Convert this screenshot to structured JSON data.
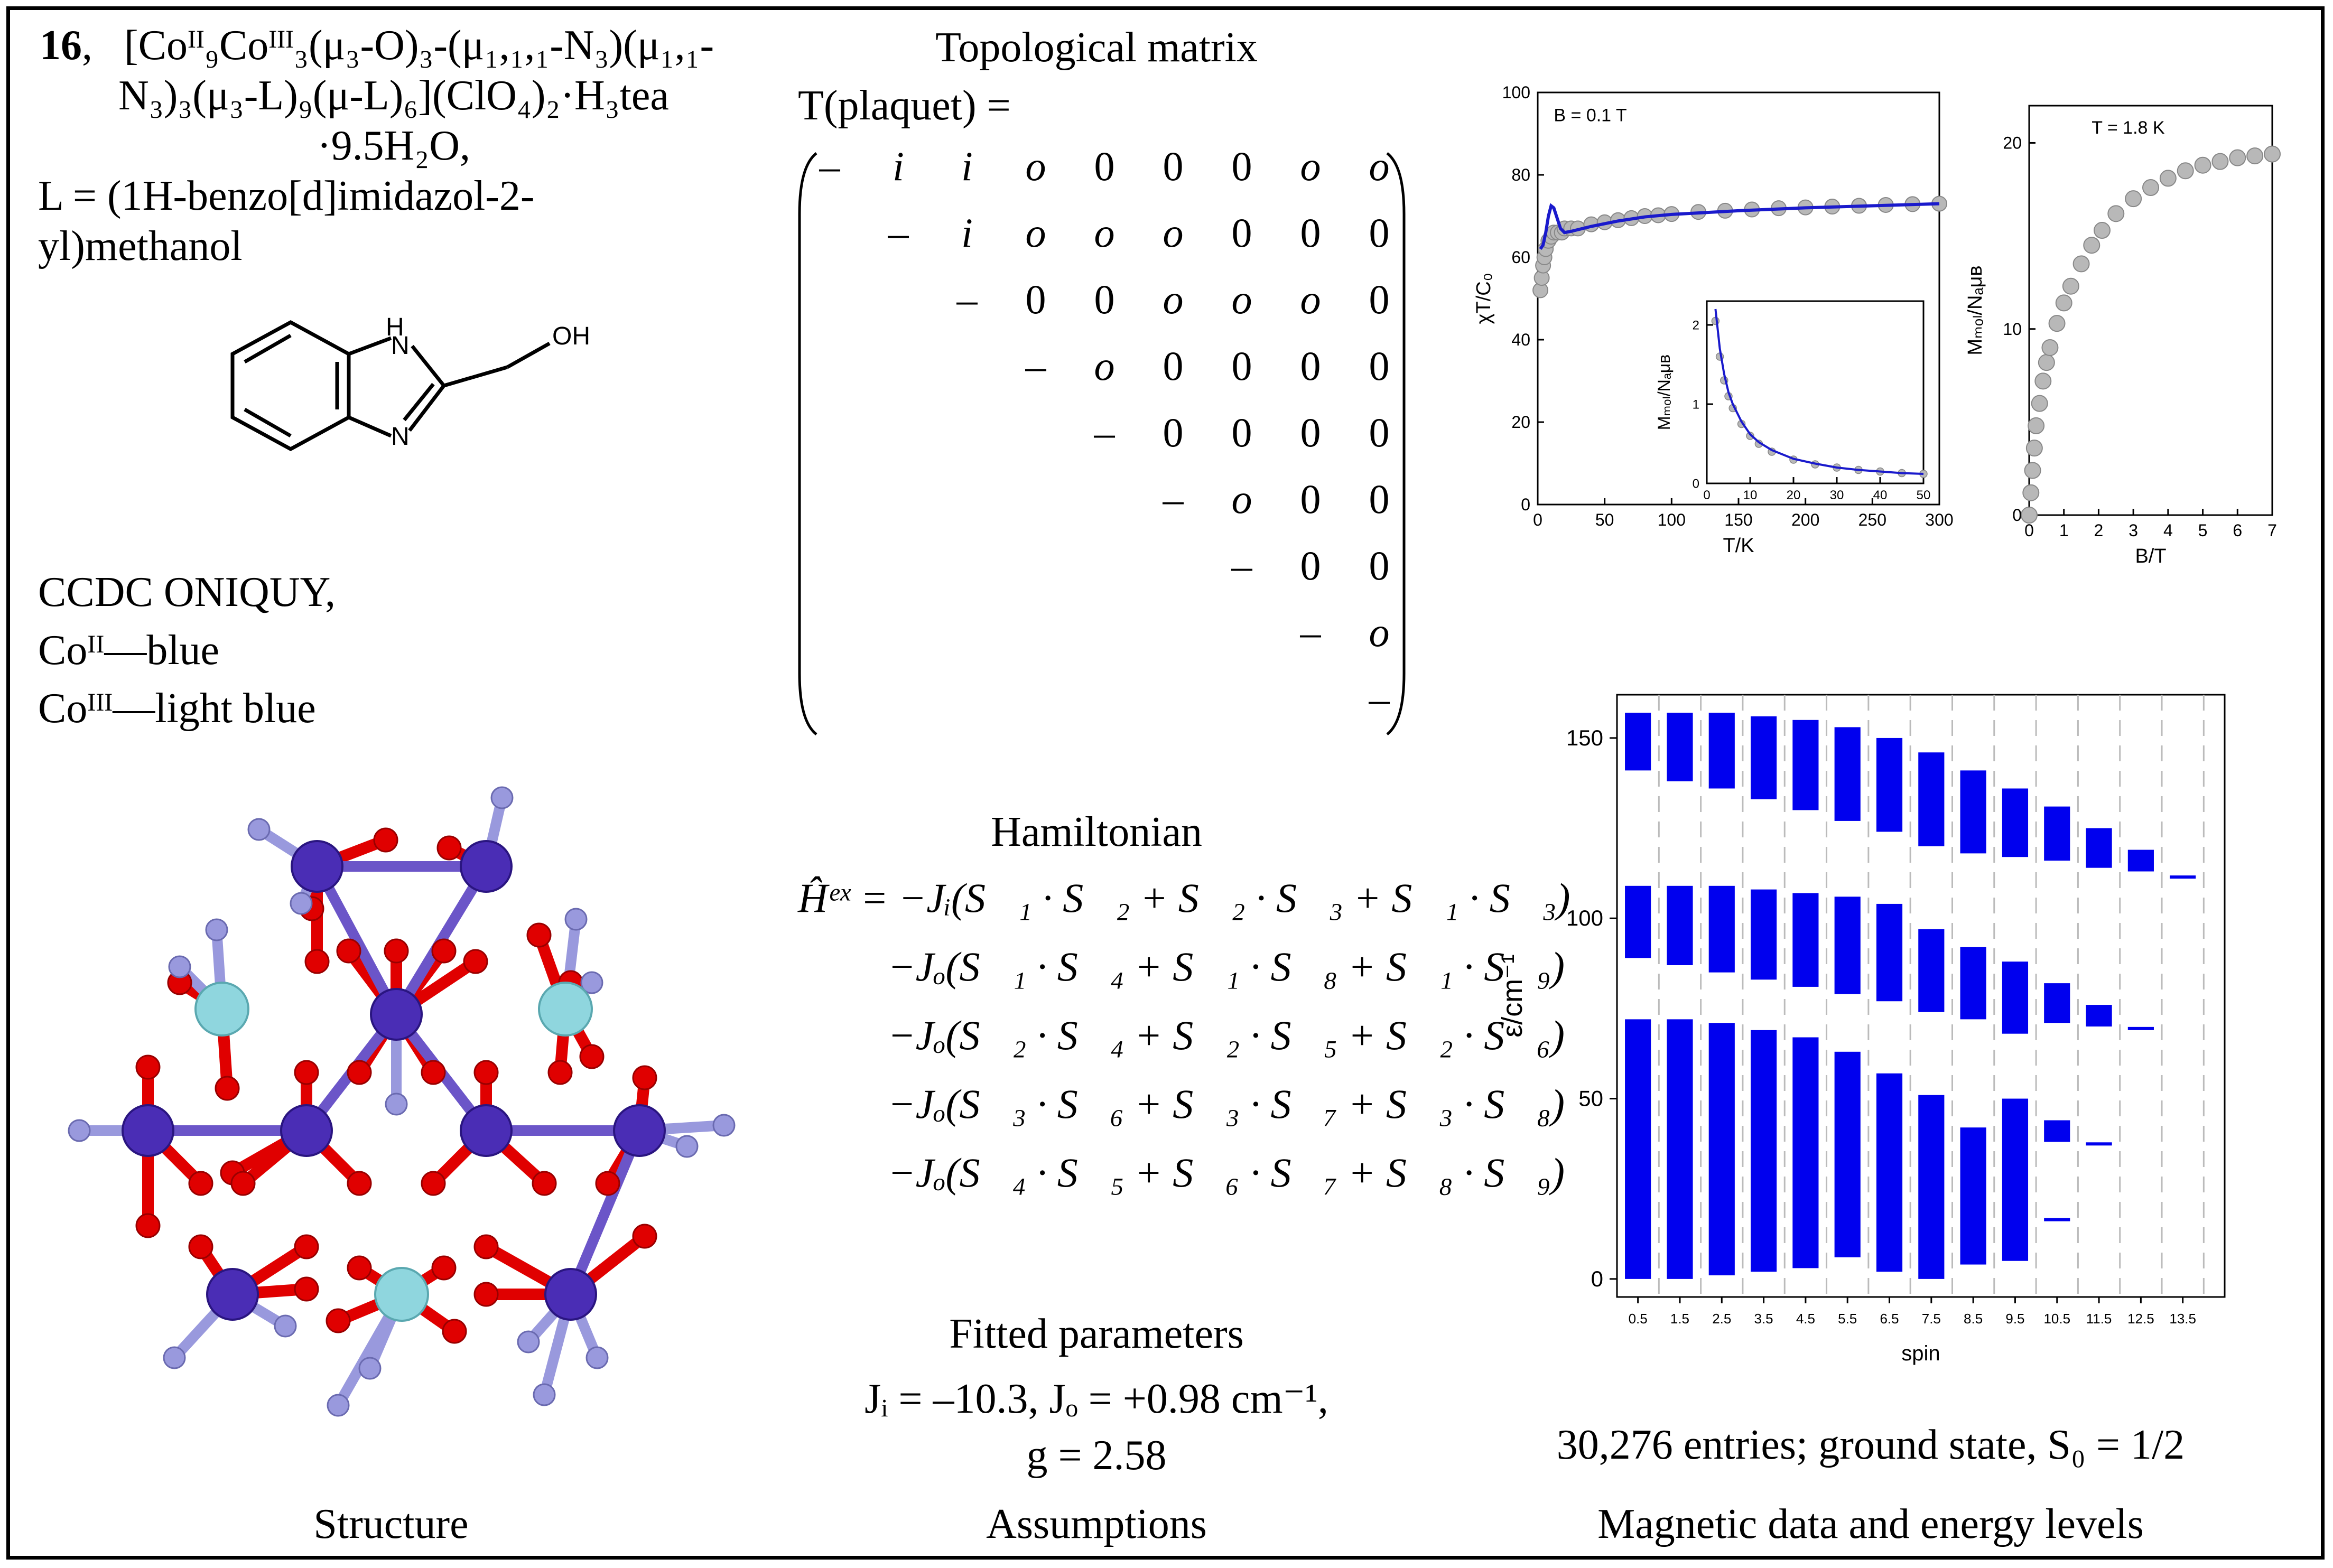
{
  "compound": {
    "number": "16",
    "formula_lines": [
      "[Coᴵᴵ₉Coᴵᴵᴵ₃(μ₃-O)₃-(μ₁,₁,₁-N₃)(μ₁,₁-",
      "N₃)₃(μ₃-L)₉(μ-L)₆](ClO₄)₂·H₃tea",
      "·9.5H₂O,"
    ],
    "ligand_line1": "L = (1H-benzo[d]imidazol-2-",
    "ligand_line2": "yl)methanol",
    "ccdc": "CCDC ONIQUY,",
    "co2": "Coᴵᴵ—blue",
    "co3": "Coᴵᴵᴵ—light blue",
    "mol_labels": {
      "nh": "H",
      "n1": "N",
      "n2": "N",
      "oh": "OH"
    }
  },
  "matrix": {
    "title": "Topological matrix",
    "label": "T(plaquet) =",
    "rows": [
      [
        "–",
        "i",
        "i",
        "o",
        "0",
        "0",
        "0",
        "o",
        "o"
      ],
      [
        "",
        "–",
        "i",
        "o",
        "o",
        "o",
        "0",
        "0",
        "0"
      ],
      [
        "",
        "",
        "–",
        "0",
        "0",
        "o",
        "o",
        "o",
        "0"
      ],
      [
        "",
        "",
        "",
        "–",
        "o",
        "0",
        "0",
        "0",
        "0"
      ],
      [
        "",
        "",
        "",
        "",
        "–",
        "0",
        "0",
        "0",
        "0"
      ],
      [
        "",
        "",
        "",
        "",
        "",
        "–",
        "o",
        "0",
        "0"
      ],
      [
        "",
        "",
        "",
        "",
        "",
        "",
        "–",
        "0",
        "0"
      ],
      [
        "",
        "",
        "",
        "",
        "",
        "",
        "",
        "–",
        "o"
      ],
      [
        "",
        "",
        "",
        "",
        "",
        "",
        "",
        "",
        "–"
      ]
    ]
  },
  "hamiltonian": {
    "title": "Hamiltonian",
    "lines": [
      "Ĥᵉˣ = −Jᵢ(S⃗₁ · S⃗₂ + S⃗₂ · S⃗₃ + S⃗₁ · S⃗₃)",
      "−Jₒ(S⃗₁ · S⃗₄ + S⃗₁ · S⃗₈ + S⃗₁ · S⃗₉)",
      "−Jₒ(S⃗₂ · S⃗₄ + S⃗₂ · S⃗₅ + S⃗₂ · S⃗₆)",
      "−Jₒ(S⃗₃ · S⃗₆ + S⃗₃ · S⃗₇ + S⃗₃ · S⃗₈)",
      "−Jₒ(S⃗₄ · S⃗₅ + S⃗₆ · S⃗₇ + S⃗₈ · S⃗₉)"
    ]
  },
  "fitted": {
    "title": "Fitted parameters",
    "line1": "Jᵢ = –10.3, Jₒ = +0.98 cm⁻¹,",
    "line2": "g = 2.58"
  },
  "summary": "30,276 entries; ground state, S₀ = 1/2",
  "captions": {
    "structure": "Structure",
    "assumptions": "Assumptions",
    "magnetic": "Magnetic data and energy levels"
  },
  "colors": {
    "co2": "#4a2db5",
    "co3": "#8fd6de",
    "oxygen": "#e00000",
    "nitrogen": "#9999dd",
    "fit": "#1a1acc",
    "exp": "#b8b8b8",
    "levels": "#0000ee"
  },
  "chart_data": [
    {
      "type": "scatter",
      "annotation": "B = 0.1 T",
      "xlabel": "T/K",
      "ylabel": "χT/C₀",
      "xlim": [
        0,
        300
      ],
      "ylim": [
        0,
        100
      ],
      "xticks": [
        "0",
        "50",
        "100",
        "150",
        "200",
        "250",
        "300"
      ],
      "yticks": [
        "0",
        "20",
        "40",
        "60",
        "80",
        "100"
      ],
      "series": [
        {
          "x": [
            2,
            3,
            4,
            5,
            6,
            8,
            10,
            12,
            15,
            18,
            20,
            25,
            30,
            40,
            50,
            60,
            70,
            80,
            90,
            100,
            120,
            140,
            160,
            180,
            200,
            220,
            240,
            260,
            280,
            300
          ],
          "y": [
            52,
            55,
            58,
            60,
            62,
            64,
            65,
            66,
            66,
            66,
            67,
            67,
            67,
            68,
            68.5,
            69,
            69.5,
            70,
            70.2,
            70.5,
            71,
            71.3,
            71.6,
            71.9,
            72.1,
            72.3,
            72.5,
            72.7,
            72.9,
            73
          ]
        },
        {
          "x": [
            2,
            4,
            6,
            8,
            10,
            12,
            14,
            17,
            20,
            25,
            30,
            40,
            60,
            80,
            100,
            150,
            200,
            250,
            300
          ],
          "y": [
            62,
            63,
            66,
            70,
            72.5,
            72,
            70,
            67,
            66,
            66.3,
            66.7,
            67.5,
            68.8,
            69.8,
            70.4,
            71.3,
            72,
            72.5,
            73
          ]
        }
      ]
    },
    {
      "type": "scatter",
      "xlabel": "",
      "ylabel": "Mₘₒₗ/Nₐμʙ",
      "xlim": [
        0,
        50
      ],
      "ylim": [
        0,
        2.3
      ],
      "xticks": [
        "0",
        "10",
        "20",
        "30",
        "40",
        "50"
      ],
      "yticks": [
        "0",
        "1",
        "2"
      ],
      "series": [
        {
          "x": [
            2,
            3,
            4,
            5,
            6,
            8,
            10,
            12,
            15,
            20,
            25,
            30,
            35,
            40,
            45,
            50
          ],
          "y": [
            2.05,
            1.6,
            1.3,
            1.1,
            0.95,
            0.75,
            0.6,
            0.5,
            0.4,
            0.3,
            0.24,
            0.2,
            0.17,
            0.15,
            0.13,
            0.12
          ]
        },
        {
          "x": [
            2,
            3,
            4,
            5,
            6,
            8,
            10,
            12,
            15,
            20,
            25,
            30,
            35,
            40,
            45,
            50
          ],
          "y": [
            2.2,
            1.7,
            1.38,
            1.15,
            1.0,
            0.78,
            0.62,
            0.52,
            0.42,
            0.31,
            0.25,
            0.2,
            0.17,
            0.15,
            0.13,
            0.12
          ]
        }
      ]
    },
    {
      "type": "scatter",
      "annotation": "T = 1.8  K",
      "xlabel": "B/T",
      "ylabel": "Mₘₒₗ/Nₐμʙ",
      "xlim": [
        0,
        7
      ],
      "ylim": [
        0,
        22
      ],
      "xticks": [
        "0",
        "1",
        "2",
        "3",
        "4",
        "5",
        "6",
        "7"
      ],
      "yticks": [
        "0",
        "10",
        "20"
      ],
      "series": [
        {
          "x": [
            0,
            0.05,
            0.1,
            0.15,
            0.2,
            0.3,
            0.4,
            0.5,
            0.6,
            0.8,
            1.0,
            1.2,
            1.5,
            1.8,
            2.1,
            2.5,
            3.0,
            3.5,
            4.0,
            4.5,
            5.0,
            5.5,
            6.0,
            6.5,
            7.0
          ],
          "y": [
            0,
            1.2,
            2.4,
            3.6,
            4.8,
            6.0,
            7.2,
            8.2,
            9.0,
            10.3,
            11.4,
            12.3,
            13.5,
            14.5,
            15.3,
            16.2,
            17.0,
            17.6,
            18.1,
            18.5,
            18.8,
            19.0,
            19.2,
            19.3,
            19.4
          ]
        }
      ]
    },
    {
      "type": "bar",
      "xlabel": "spin",
      "ylabel": "ε/cm⁻¹",
      "ylim": [
        -5,
        162
      ],
      "categories": [
        "0.5",
        "1.5",
        "2.5",
        "3.5",
        "4.5",
        "5.5",
        "6.5",
        "7.5",
        "8.5",
        "9.5",
        "10.5",
        "11.5",
        "12.5",
        "13.5"
      ],
      "yticks": [
        "0",
        "50",
        "100",
        "150"
      ],
      "bands": [
        [
          [
            0,
            72
          ],
          [
            89,
            109
          ],
          [
            141,
            157
          ]
        ],
        [
          [
            0,
            72
          ],
          [
            87,
            109
          ],
          [
            138,
            157
          ]
        ],
        [
          [
            1,
            71
          ],
          [
            85,
            109
          ],
          [
            136,
            157
          ]
        ],
        [
          [
            2,
            69
          ],
          [
            83,
            108
          ],
          [
            133,
            156
          ]
        ],
        [
          [
            3,
            67
          ],
          [
            81,
            107
          ],
          [
            130,
            155
          ]
        ],
        [
          [
            6,
            63
          ],
          [
            79,
            106
          ],
          [
            127,
            153
          ]
        ],
        [
          [
            2,
            57
          ],
          [
            77,
            104
          ],
          [
            124,
            150
          ]
        ],
        [
          [
            0,
            51
          ],
          [
            74,
            97
          ],
          [
            120,
            146
          ]
        ],
        [
          [
            4,
            42
          ],
          [
            72,
            92
          ],
          [
            118,
            141
          ]
        ],
        [
          [
            5,
            50
          ],
          [
            68,
            88
          ],
          [
            117,
            136
          ]
        ],
        [
          [
            16,
            16
          ],
          [
            38,
            44
          ],
          [
            71,
            82
          ],
          [
            116,
            131
          ]
        ],
        [
          [
            37,
            37
          ],
          [
            70,
            76
          ],
          [
            114,
            125
          ]
        ],
        [
          [
            69,
            69
          ],
          [
            113,
            119
          ]
        ],
        [
          [
            111,
            111
          ]
        ]
      ]
    }
  ]
}
